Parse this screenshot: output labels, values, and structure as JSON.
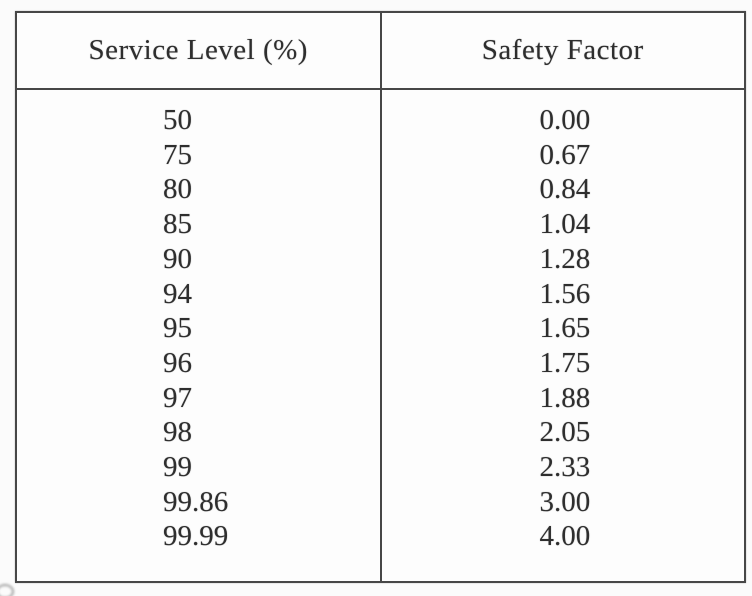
{
  "table": {
    "columns": [
      "Service Level (%)",
      "Safety Factor"
    ],
    "rows": [
      [
        "50",
        "0.00"
      ],
      [
        "75",
        "0.67"
      ],
      [
        "80",
        "0.84"
      ],
      [
        "85",
        "1.04"
      ],
      [
        "90",
        "1.28"
      ],
      [
        "94",
        "1.56"
      ],
      [
        "95",
        "1.65"
      ],
      [
        "96",
        "1.75"
      ],
      [
        "97",
        "1.88"
      ],
      [
        "98",
        "2.05"
      ],
      [
        "99",
        "2.33"
      ],
      [
        "99.86",
        "3.00"
      ],
      [
        "99.99",
        "4.00"
      ]
    ]
  },
  "chart_data": {
    "type": "table",
    "title": "",
    "columns": [
      "Service Level (%)",
      "Safety Factor"
    ],
    "service_level_percent": [
      50,
      75,
      80,
      85,
      90,
      94,
      95,
      96,
      97,
      98,
      99,
      99.86,
      99.99
    ],
    "safety_factor": [
      0.0,
      0.67,
      0.84,
      1.04,
      1.28,
      1.56,
      1.65,
      1.75,
      1.88,
      2.05,
      2.33,
      3.0,
      4.0
    ]
  },
  "colors": {
    "border": "#474747",
    "text": "#2e2e2e",
    "background": "#fbfbfb"
  }
}
